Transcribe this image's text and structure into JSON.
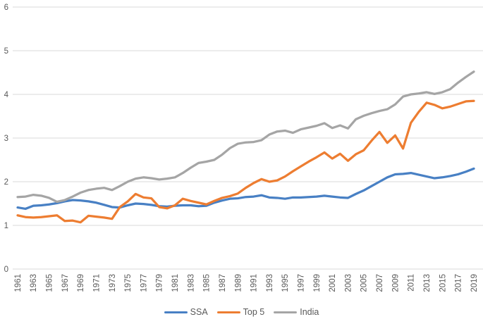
{
  "chart_data": {
    "type": "line",
    "grid": "horizontal",
    "legend_position": "bottom",
    "y_axis": {
      "min": 0,
      "max": 6,
      "tick_labels": [
        "0",
        "1",
        "2",
        "3",
        "4",
        "5",
        "6"
      ]
    },
    "x_axis": {
      "start_year": 1961,
      "end_year": 2019,
      "tick_labels": [
        "1961",
        "1963",
        "1965",
        "1967",
        "1969",
        "1971",
        "1973",
        "1975",
        "1977",
        "1979",
        "1981",
        "1983",
        "1985",
        "1987",
        "1989",
        "1991",
        "1993",
        "1995",
        "1997",
        "1999",
        "2001",
        "2003",
        "2005",
        "2007",
        "2009",
        "2011",
        "2013",
        "2015",
        "2017",
        "2019"
      ]
    },
    "series": [
      {
        "name": "SSA",
        "color": "#4880C4",
        "values": [
          1.41,
          1.38,
          1.45,
          1.46,
          1.48,
          1.51,
          1.55,
          1.58,
          1.57,
          1.55,
          1.52,
          1.47,
          1.42,
          1.41,
          1.46,
          1.5,
          1.49,
          1.47,
          1.44,
          1.43,
          1.45,
          1.46,
          1.46,
          1.44,
          1.45,
          1.52,
          1.57,
          1.61,
          1.62,
          1.65,
          1.66,
          1.69,
          1.64,
          1.63,
          1.61,
          1.64,
          1.64,
          1.65,
          1.66,
          1.68,
          1.66,
          1.64,
          1.63,
          1.72,
          1.8,
          1.9,
          2.0,
          2.1,
          2.17,
          2.18,
          2.2,
          2.16,
          2.12,
          2.08,
          2.1,
          2.13,
          2.17,
          2.23,
          2.3
        ]
      },
      {
        "name": "Top 5",
        "color": "#ED7D31",
        "values": [
          1.23,
          1.19,
          1.18,
          1.19,
          1.21,
          1.23,
          1.1,
          1.11,
          1.07,
          1.22,
          1.2,
          1.18,
          1.15,
          1.42,
          1.55,
          1.72,
          1.64,
          1.62,
          1.42,
          1.39,
          1.46,
          1.61,
          1.56,
          1.52,
          1.48,
          1.56,
          1.63,
          1.67,
          1.73,
          1.86,
          1.97,
          2.06,
          2.0,
          2.03,
          2.12,
          2.24,
          2.35,
          2.46,
          2.56,
          2.67,
          2.53,
          2.64,
          2.48,
          2.63,
          2.72,
          2.94,
          3.14,
          2.89,
          3.06,
          2.76,
          3.35,
          3.6,
          3.81,
          3.76,
          3.68,
          3.72,
          3.78,
          3.84,
          3.85
        ]
      },
      {
        "name": "India",
        "color": "#A5A5A5",
        "values": [
          1.65,
          1.66,
          1.7,
          1.68,
          1.63,
          1.54,
          1.58,
          1.66,
          1.75,
          1.81,
          1.84,
          1.86,
          1.81,
          1.9,
          2.0,
          2.07,
          2.1,
          2.08,
          2.05,
          2.07,
          2.1,
          2.2,
          2.32,
          2.43,
          2.46,
          2.5,
          2.62,
          2.77,
          2.87,
          2.9,
          2.91,
          2.95,
          3.08,
          3.15,
          3.17,
          3.12,
          3.2,
          3.24,
          3.28,
          3.34,
          3.23,
          3.29,
          3.22,
          3.43,
          3.51,
          3.57,
          3.62,
          3.66,
          3.77,
          3.95,
          4.0,
          4.02,
          4.05,
          4.01,
          4.05,
          4.12,
          4.27,
          4.4,
          4.52
        ]
      }
    ]
  },
  "styles": {
    "background": "#FFFFFF",
    "gridline_color": "#D9D9D9",
    "axis_label_color": "#595959"
  }
}
